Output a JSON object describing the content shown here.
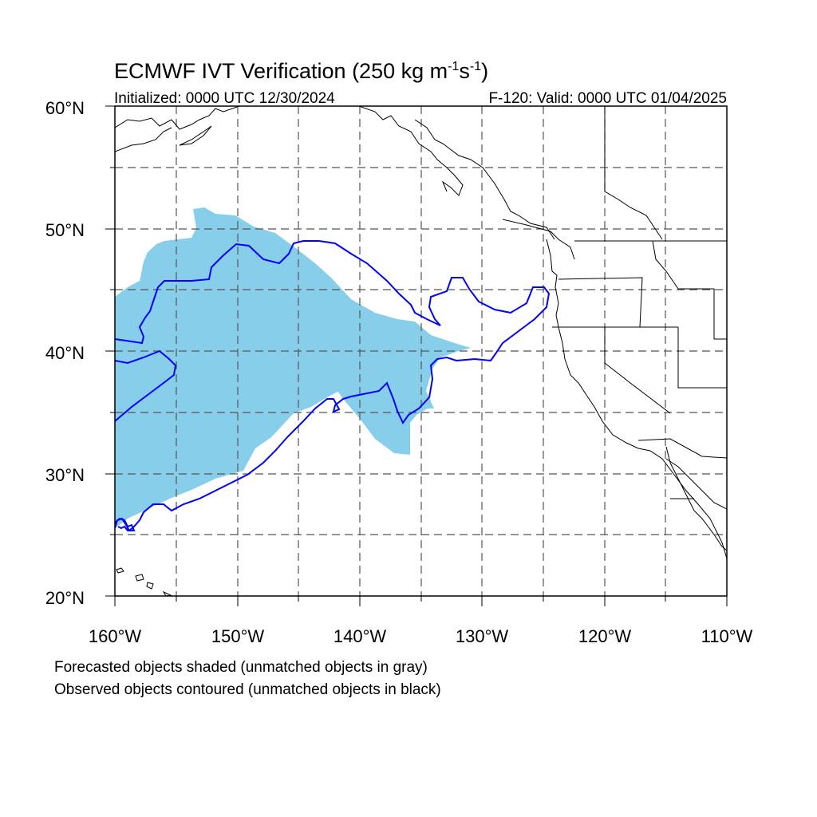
{
  "figure": {
    "title_main": "ECMWF IVT Verification (250 kg m",
    "title_exp1": "-1",
    "title_mid": "s",
    "title_exp2": "-1",
    "title_close": ")",
    "initialized": "Initialized: 0000 UTC 12/30/2024",
    "valid": "F-120: Valid: 0000 UTC 01/04/2025"
  },
  "axes": {
    "lon_labels": [
      "160°W",
      "150°W",
      "140°W",
      "130°W",
      "120°W",
      "110°W"
    ],
    "lat_labels": [
      "20°N",
      "30°N",
      "40°N",
      "50°N",
      "60°N"
    ],
    "lon_range": [
      -160,
      -110
    ],
    "lat_range": [
      20,
      60
    ],
    "gridlines_dashed": true
  },
  "legend": {
    "line1": "Forecasted objects shaded (unmatched objects in gray)",
    "line2": "Observed objects contoured (unmatched objects in black)"
  },
  "colors": {
    "forecast_fill": "#87ceeb",
    "observed_contour": "#0000ff",
    "coastline": "#000000",
    "gridline": "#555555"
  }
}
